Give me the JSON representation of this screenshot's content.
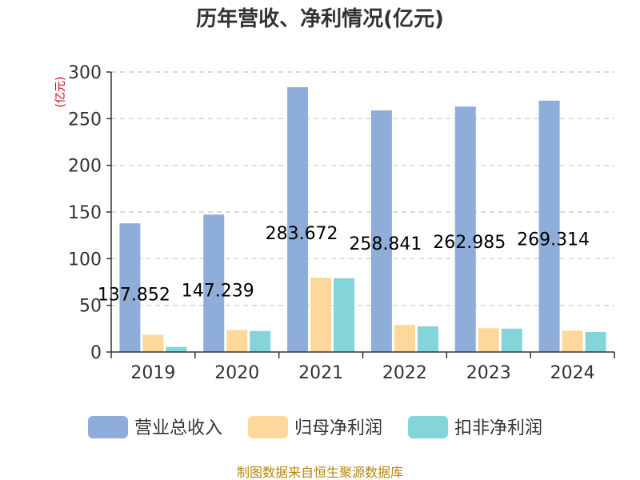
{
  "chart_data": {
    "type": "bar",
    "title": "历年营收、净利情况(亿元)",
    "ylabel": "(亿元)",
    "ylim": [
      0,
      300
    ],
    "yticks": [
      0,
      50,
      100,
      150,
      200,
      250,
      300
    ],
    "grid": true,
    "legend_position": "bottom",
    "categories": [
      "2019",
      "2020",
      "2021",
      "2022",
      "2023",
      "2024"
    ],
    "series": [
      {
        "name": "营业总收入",
        "color": "#8eadd9",
        "values": [
          137.852,
          147.239,
          283.672,
          258.841,
          262.985,
          269.314
        ],
        "labels": [
          "137.852",
          "147.239",
          "283.672",
          "258.841",
          "262.985",
          "269.314"
        ]
      },
      {
        "name": "归母净利润",
        "color": "#fdd89a",
        "values": [
          18.5,
          23.5,
          79.5,
          29.0,
          25.5,
          23.0
        ]
      },
      {
        "name": "扣非净利润",
        "color": "#84d5d9",
        "values": [
          5.5,
          22.5,
          79.0,
          27.5,
          25.0,
          21.5
        ]
      }
    ],
    "source": "制图数据来自恒生聚源数据库"
  }
}
